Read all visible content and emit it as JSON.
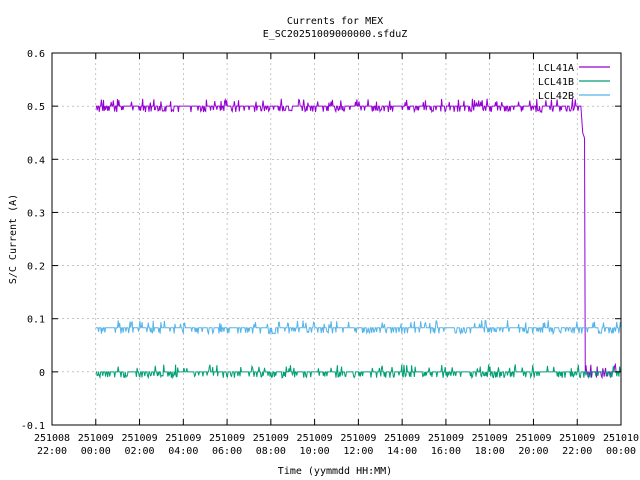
{
  "chart_data": {
    "type": "line",
    "title": "Currents for MEX",
    "subtitle": "E_SC20251009000000.sfduZ",
    "xlabel": "Time (yymmdd HH:MM)",
    "ylabel": "S/C Current (A)",
    "ylim": [
      -0.1,
      0.6
    ],
    "yticks": [
      "-0.1",
      "0",
      "0.1",
      "0.2",
      "0.3",
      "0.4",
      "0.5",
      "0.6"
    ],
    "xlim": [
      "251008 22:00",
      "251010 00:00"
    ],
    "xticks": [
      [
        "251008",
        "22:00"
      ],
      [
        "251009",
        "00:00"
      ],
      [
        "251009",
        "02:00"
      ],
      [
        "251009",
        "04:00"
      ],
      [
        "251009",
        "06:00"
      ],
      [
        "251009",
        "08:00"
      ],
      [
        "251009",
        "10:00"
      ],
      [
        "251009",
        "12:00"
      ],
      [
        "251009",
        "14:00"
      ],
      [
        "251009",
        "16:00"
      ],
      [
        "251009",
        "18:00"
      ],
      [
        "251009",
        "20:00"
      ],
      [
        "251009",
        "22:00"
      ],
      [
        "251010",
        "00:00"
      ]
    ],
    "grid": true,
    "legend_position": "top-right",
    "series": [
      {
        "name": "LCL41A",
        "color": "#9400d3",
        "x": [
          "251009 00:00",
          "251009 22:10",
          "251009 22:15",
          "251009 22:20",
          "251009 22:22",
          "251010 00:00"
        ],
        "values": [
          0.5,
          0.5,
          0.45,
          0.44,
          0.0,
          0.0
        ]
      },
      {
        "name": "LCL41B",
        "color": "#009e73",
        "x": [
          "251009 00:00",
          "251010 00:00"
        ],
        "values": [
          0.0,
          0.0
        ]
      },
      {
        "name": "LCL42B",
        "color": "#56b4e9",
        "x": [
          "251009 00:00",
          "251010 00:00"
        ],
        "values": [
          0.083,
          0.083
        ]
      }
    ]
  }
}
